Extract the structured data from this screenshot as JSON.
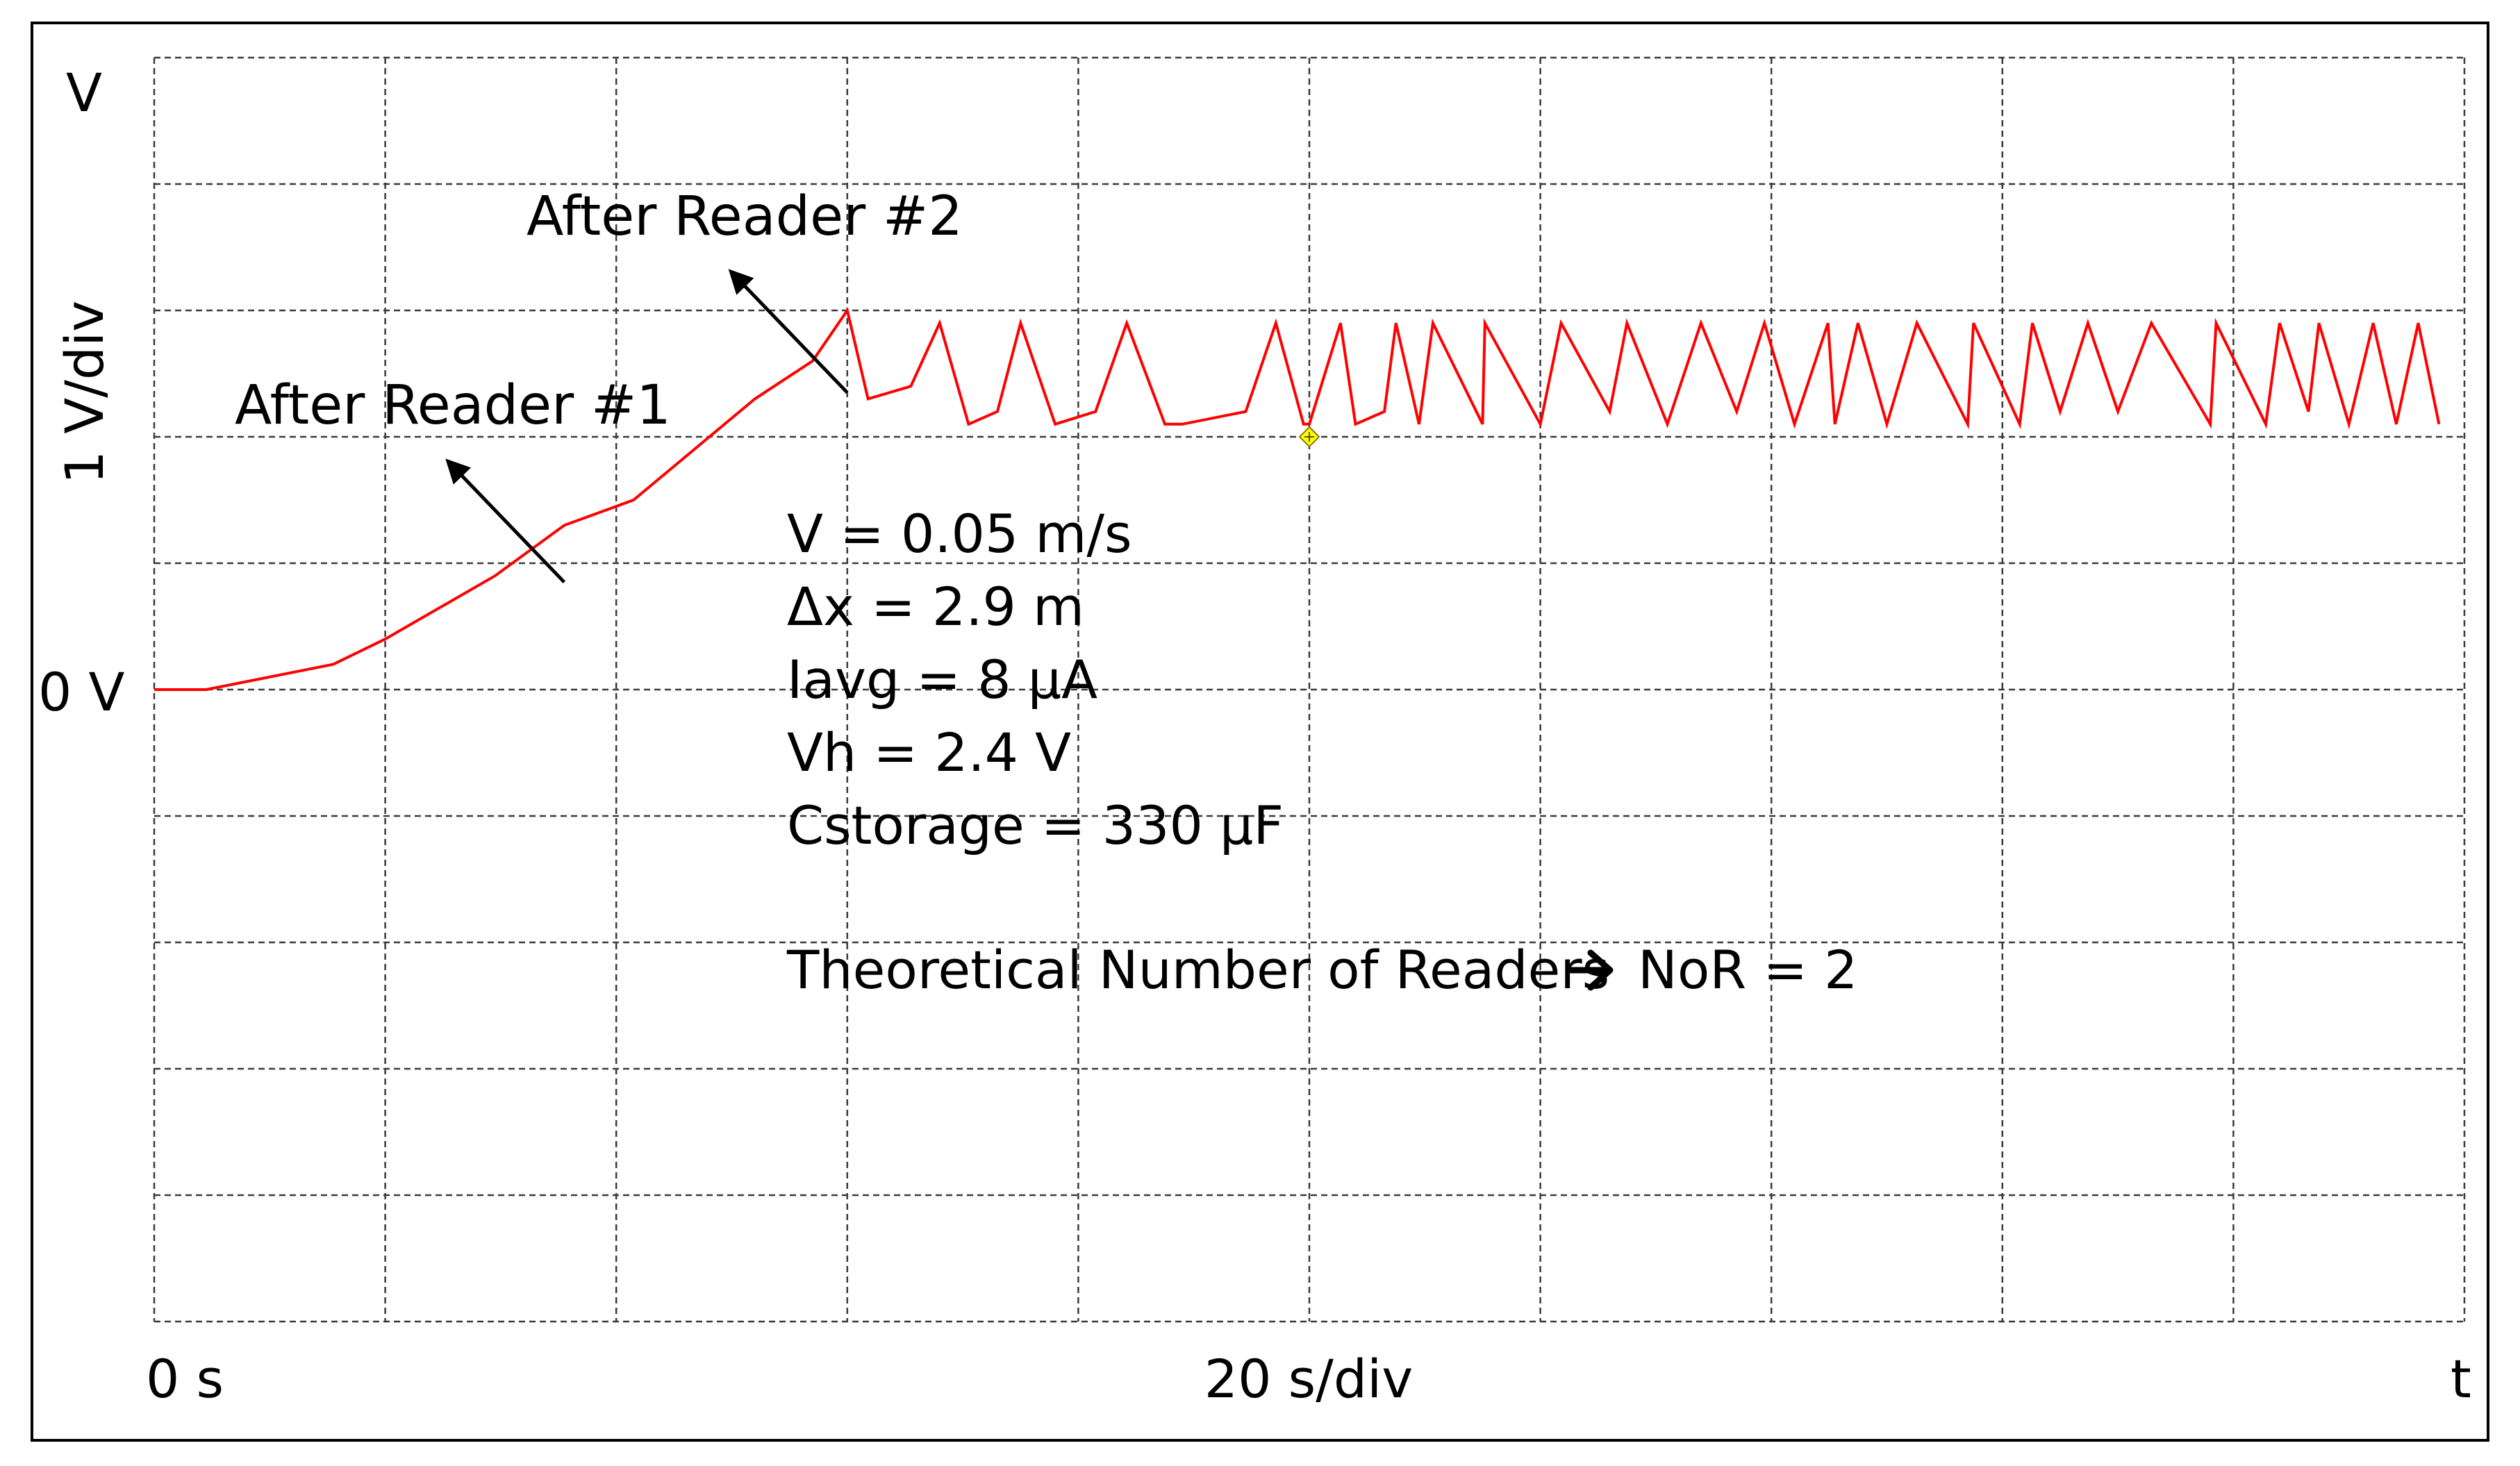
{
  "chart_data": {
    "type": "line",
    "title": "",
    "ylabel": "1 V/div",
    "xlabel": "20 s/div",
    "y_unit_label": "V",
    "x_unit_label": "t",
    "y_origin_label": "0 V",
    "x_origin_label": "0 s",
    "grid": true,
    "xlim": [
      0,
      200
    ],
    "ylim": [
      -5,
      5
    ],
    "line_color": "#ff0000",
    "marker_color": "#ffff00",
    "series": [
      {
        "x": [
          0,
          4.5,
          15.5,
          20,
          29.5,
          35.5,
          41.5,
          52,
          57,
          60,
          61.8,
          65.5,
          68,
          70.5,
          73,
          75,
          78,
          81.5,
          84.2,
          87.5,
          89,
          94.5,
          97.1,
          99.5,
          100,
          102.7,
          104,
          106.5,
          107.5,
          109.5,
          110.7,
          115,
          115.2,
          120,
          121.8,
          126,
          127.5,
          131,
          133.9,
          137,
          139.4,
          142,
          144.9,
          145.5,
          147.5,
          150,
          152.6,
          157,
          157.5,
          161.5,
          162.6,
          165,
          167.4,
          170,
          172.9,
          178,
          178.5,
          182.8,
          184,
          186.5,
          187.4,
          190,
          192.1,
          194.1,
          196,
          197.8
        ],
        "y": [
          0,
          0,
          0.2,
          0.4,
          0.9,
          1.3,
          1.5,
          2.3,
          2.6,
          3.0,
          2.3,
          2.4,
          2.9,
          2.1,
          2.2,
          2.9,
          2.1,
          2.2,
          2.9,
          2.1,
          2.1,
          2.2,
          2.9,
          2.1,
          2.1,
          2.9,
          2.1,
          2.2,
          2.9,
          2.1,
          2.9,
          2.1,
          2.9,
          2.1,
          2.9,
          2.2,
          2.9,
          2.1,
          2.9,
          2.2,
          2.9,
          2.1,
          2.9,
          2.1,
          2.9,
          2.1,
          2.9,
          2.1,
          2.9,
          2.1,
          2.9,
          2.2,
          2.9,
          2.2,
          2.9,
          2.1,
          2.9,
          2.1,
          2.9,
          2.2,
          2.9,
          2.1,
          2.9,
          2.1,
          2.9,
          2.1
        ]
      }
    ],
    "cursor_marker": {
      "x": 100,
      "y": 2.0
    },
    "annotations": [
      {
        "text": "After Reader #1",
        "arrow_from": [
          35.5,
          0.85
        ],
        "arrow_to": [
          25.5,
          1.8
        ]
      },
      {
        "text": "After Reader #2",
        "arrow_from": [
          60,
          2.35
        ],
        "arrow_to": [
          50,
          3.3
        ]
      }
    ],
    "parameters": [
      "V = 0.05 m/s",
      "Δx = 2.9 m",
      "Iavg = 8 µA",
      "Vh = 2.4 V",
      "Cstorage = 330 µF"
    ],
    "conclusion": "Theoretical Number of Readers",
    "conclusion_result": "NoR = 2"
  }
}
